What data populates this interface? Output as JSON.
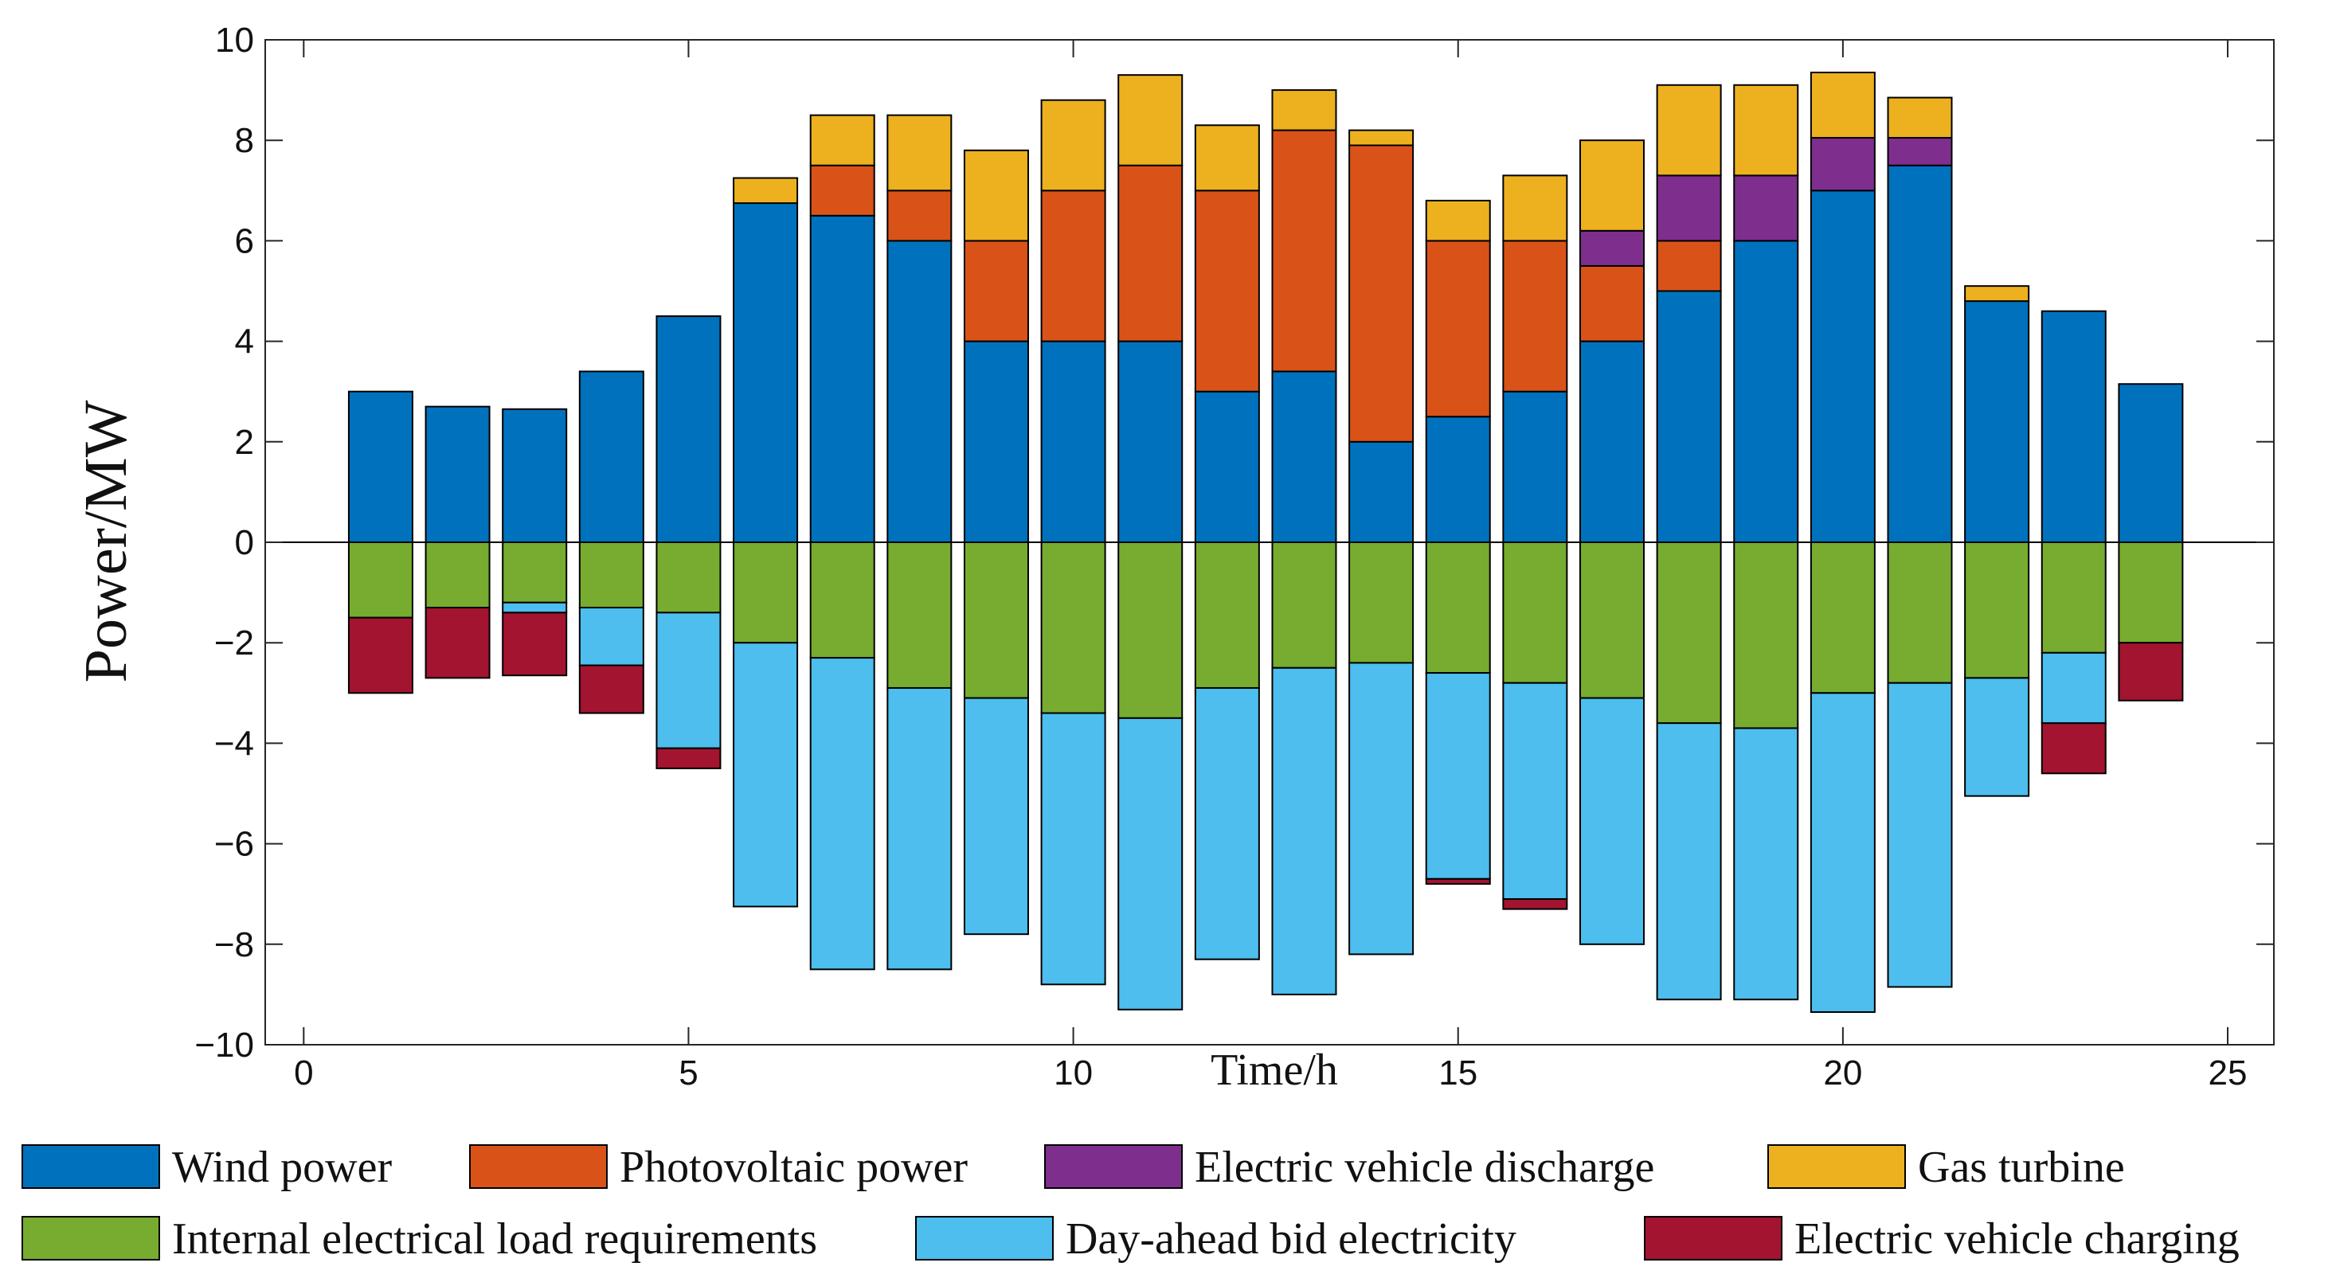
{
  "chart_data": {
    "type": "bar",
    "stacked": true,
    "title": "",
    "xlabel": "Time/h",
    "ylabel": "Power/MW",
    "xlim": [
      -0.5,
      25.6
    ],
    "ylim": [
      -10,
      10
    ],
    "xticks": [
      0,
      5,
      10,
      15,
      20,
      25
    ],
    "yticks": [
      -10,
      -8,
      -6,
      -4,
      -2,
      0,
      2,
      4,
      6,
      8,
      10
    ],
    "xtick_labels": [
      "0",
      "5",
      "10",
      "15",
      "20",
      "25"
    ],
    "ytick_labels": [
      "−10",
      "−8",
      "−6",
      "−4",
      "−2",
      "0",
      "2",
      "4",
      "6",
      "8",
      "10"
    ],
    "grid": false,
    "legend_position": "bottom",
    "x": [
      1,
      2,
      3,
      4,
      5,
      6,
      7,
      8,
      9,
      10,
      11,
      12,
      13,
      14,
      15,
      16,
      17,
      18,
      19,
      20,
      21,
      22,
      23,
      24,
      25
    ],
    "series": [
      {
        "name": "Wind power",
        "color": "#0072BD",
        "stack": "positive",
        "values": [
          3.0,
          2.7,
          2.65,
          3.4,
          4.5,
          6.75,
          6.5,
          6.0,
          4.0,
          4.0,
          4.0,
          3.0,
          3.4,
          2.0,
          2.5,
          3.0,
          4.0,
          5.0,
          6.0,
          7.0,
          7.5,
          4.8,
          4.6,
          3.15,
          0
        ]
      },
      {
        "name": "Photovoltaic power",
        "color": "#D95319",
        "stack": "positive",
        "values": [
          0,
          0,
          0,
          0,
          0,
          0,
          1.0,
          1.0,
          2.0,
          3.0,
          3.5,
          4.0,
          4.8,
          5.9,
          3.5,
          3.0,
          1.5,
          1.0,
          0,
          0,
          0,
          0,
          0,
          0,
          0
        ]
      },
      {
        "name": "Electric vehicle discharge",
        "color": "#7E2F8E",
        "stack": "positive",
        "values": [
          0,
          0,
          0,
          0,
          0,
          0,
          0,
          0,
          0,
          0,
          0,
          0,
          0,
          0,
          0,
          0,
          0.7,
          1.3,
          1.3,
          1.05,
          0.55,
          0,
          0,
          0,
          0
        ]
      },
      {
        "name": "Gas turbine",
        "color": "#EDB120",
        "stack": "positive",
        "values": [
          0,
          0,
          0,
          0,
          0,
          0.5,
          1.0,
          1.5,
          1.8,
          1.8,
          1.8,
          1.3,
          0.8,
          0.3,
          0.8,
          1.3,
          1.8,
          1.8,
          1.8,
          1.3,
          0.8,
          0.3,
          0,
          0,
          0
        ]
      },
      {
        "name": "Internal electrical load requirements",
        "color": "#77AC30",
        "stack": "negative",
        "values": [
          -1.5,
          -1.3,
          -1.2,
          -1.3,
          -1.4,
          -2.0,
          -2.3,
          -2.9,
          -3.1,
          -3.4,
          -3.5,
          -2.9,
          -2.5,
          -2.4,
          -2.6,
          -2.8,
          -3.1,
          -3.6,
          -3.7,
          -3.0,
          -2.8,
          -2.7,
          -2.2,
          -2.0,
          0
        ]
      },
      {
        "name": "Day-ahead bid electricity",
        "color": "#4DBEEE",
        "stack": "negative",
        "values": [
          0,
          0,
          -0.2,
          -1.15,
          -2.7,
          -5.25,
          -6.2,
          -5.6,
          -4.7,
          -5.4,
          -5.8,
          -5.4,
          -6.5,
          -5.8,
          -4.1,
          -4.3,
          -4.9,
          -5.5,
          -5.4,
          -6.35,
          -6.05,
          -2.35,
          -1.4,
          0,
          0
        ]
      },
      {
        "name": "Electric vehicle charging",
        "color": "#A2142F",
        "stack": "negative",
        "values": [
          -1.5,
          -1.4,
          -1.25,
          -0.95,
          -0.4,
          0,
          0,
          0,
          0,
          0,
          0,
          0,
          0,
          0,
          -0.1,
          -0.2,
          0,
          0,
          0,
          0,
          0,
          0,
          -1.0,
          -1.15,
          0
        ]
      }
    ],
    "legend": [
      "Wind power",
      "Photovoltaic power",
      "Electric vehicle discharge",
      "Gas turbine",
      "Internal electrical load requirements",
      "Day-ahead bid electricity",
      "Electric vehicle charging"
    ]
  }
}
